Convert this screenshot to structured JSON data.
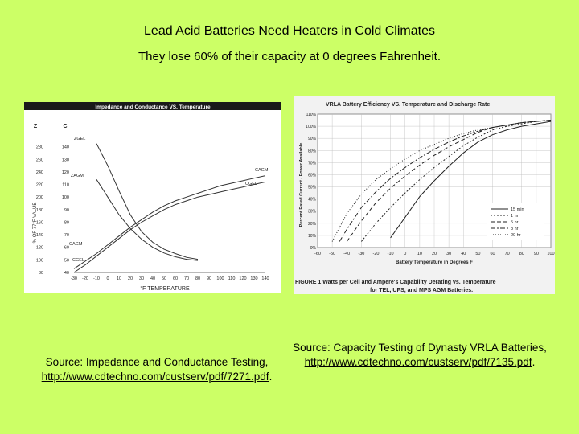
{
  "slide": {
    "title": "Lead Acid Batteries Need Heaters in Cold Climates",
    "subtitle": "They lose 60% of their capacity at 0 degrees Fahrenheit."
  },
  "captions": {
    "left_text": "Source: Impedance and Conductance Testing,",
    "left_link": "http://www.cdtechno.com/custserv/pdf/7271.pdf",
    "left_suffix": ".",
    "right_text": "Source: Capacity Testing of Dynasty VRLA Batteries,",
    "right_link": "http://www.cdtechno.com/custserv/pdf/7135.pdf",
    "right_suffix": "."
  },
  "colors": {
    "background": "#ccff66",
    "header_bar": "#1a1a1a",
    "ink": "#222222"
  },
  "chart_data": [
    {
      "type": "line",
      "title": "Impedance and Conductance VS. Temperature",
      "xlabel": "°F TEMPERATURE",
      "ylabel": "% OF 77°F VALUE",
      "y_col_headers": [
        "Z",
        "C"
      ],
      "x_ticks": [
        -30,
        -20,
        -10,
        0,
        10,
        20,
        30,
        40,
        50,
        60,
        70,
        80,
        90,
        100,
        110,
        120,
        130,
        140
      ],
      "z_ticks": [
        280,
        260,
        240,
        220,
        200,
        180,
        160,
        140,
        120,
        100,
        80
      ],
      "c_ticks": [
        140,
        130,
        120,
        110,
        100,
        90,
        80,
        70,
        60,
        50,
        40
      ],
      "z_ylim": [
        80,
        300
      ],
      "c_ylim": [
        40,
        150
      ],
      "series": [
        {
          "name": "ZGEL",
          "axis": "z",
          "x": [
            -10,
            0,
            10,
            20,
            30,
            40,
            50,
            60,
            70,
            80
          ],
          "y": [
            285,
            250,
            210,
            172,
            145,
            128,
            117,
            110,
            104,
            101
          ]
        },
        {
          "name": "ZAGM",
          "axis": "z",
          "x": [
            -10,
            0,
            10,
            20,
            30,
            40,
            50,
            60,
            70,
            80
          ],
          "y": [
            228,
            200,
            172,
            150,
            133,
            120,
            111,
            105,
            101,
            99
          ]
        },
        {
          "name": "CAGM",
          "axis": "c",
          "x": [
            -30,
            -20,
            -10,
            0,
            10,
            20,
            30,
            40,
            50,
            60,
            70,
            80,
            90,
            100,
            110,
            120,
            130,
            140
          ],
          "y": [
            43,
            49,
            55,
            62,
            69,
            76,
            82,
            88,
            93,
            97,
            100,
            103,
            106,
            109,
            111,
            113,
            115,
            117
          ]
        },
        {
          "name": "CGEL",
          "axis": "c",
          "x": [
            -30,
            -20,
            -10,
            0,
            10,
            20,
            30,
            40,
            50,
            60,
            70,
            80,
            90,
            100,
            110,
            120,
            130,
            140
          ],
          "y": [
            40,
            46,
            53,
            60,
            67,
            74,
            80,
            85,
            90,
            94,
            97,
            100,
            102,
            104,
            106,
            108,
            110,
            112
          ]
        }
      ],
      "labels": {
        "zgel": "ZGEL",
        "zagm": "ZAGM",
        "cagm": "CAGM",
        "cgel": "CGEL",
        "cagm2": "CAGM",
        "cgel2": "CGEL"
      }
    },
    {
      "type": "line",
      "title": "VRLA Battery Efficiency VS. Temperature and Discharge Rate",
      "xlabel": "Battery Temperature in Degrees F",
      "ylabel": "Percent Rated Current / Power Available",
      "x_ticks": [
        -60,
        -50,
        -40,
        -30,
        -20,
        -10,
        0,
        10,
        20,
        30,
        40,
        50,
        60,
        70,
        80,
        90,
        100
      ],
      "y_ticks": [
        "0%",
        "10%",
        "20%",
        "30%",
        "40%",
        "50%",
        "60%",
        "70%",
        "80%",
        "90%",
        "100%",
        "110%"
      ],
      "xlim": [
        -60,
        100
      ],
      "ylim": [
        0,
        110
      ],
      "series": [
        {
          "name": "15 min",
          "dash": "",
          "x": [
            -10,
            0,
            10,
            20,
            30,
            40,
            50,
            60,
            70,
            80,
            90,
            100
          ],
          "y": [
            8,
            25,
            42,
            55,
            67,
            78,
            87,
            93,
            97,
            100,
            102,
            104
          ]
        },
        {
          "name": "1 hr",
          "dash": "2,2",
          "x": [
            -30,
            -20,
            -10,
            0,
            10,
            20,
            30,
            40,
            50,
            60,
            70,
            80,
            90,
            100
          ],
          "y": [
            5,
            20,
            33,
            45,
            56,
            66,
            75,
            84,
            91,
            97,
            100,
            102,
            104,
            105
          ]
        },
        {
          "name": "5 hr",
          "dash": "5,3",
          "x": [
            -40,
            -30,
            -20,
            -10,
            0,
            10,
            20,
            30,
            40,
            50,
            60,
            70,
            80,
            90,
            100
          ],
          "y": [
            5,
            22,
            37,
            49,
            59,
            68,
            76,
            83,
            89,
            95,
            99,
            101,
            103,
            104,
            105
          ]
        },
        {
          "name": "8 hr",
          "dash": "6,2,2,2",
          "x": [
            -45,
            -40,
            -30,
            -20,
            -10,
            0,
            10,
            20,
            30,
            40,
            50,
            60,
            70,
            80,
            90,
            100
          ],
          "y": [
            5,
            15,
            33,
            46,
            57,
            66,
            74,
            81,
            87,
            92,
            96,
            99,
            101,
            103,
            104,
            105
          ]
        },
        {
          "name": "20 hr",
          "dash": "1,2",
          "x": [
            -50,
            -40,
            -30,
            -20,
            -10,
            0,
            10,
            20,
            30,
            40,
            50,
            60,
            70,
            80,
            90,
            100
          ],
          "y": [
            5,
            28,
            44,
            56,
            65,
            73,
            80,
            85,
            90,
            94,
            97,
            99,
            101,
            103,
            104,
            105
          ]
        }
      ],
      "figure_caption_line1": "FIGURE 1   Watts per Cell and Ampere's Capability Derating vs. Temperature",
      "figure_caption_line2": "for TEL, UPS, and MPS AGM Batteries."
    }
  ]
}
